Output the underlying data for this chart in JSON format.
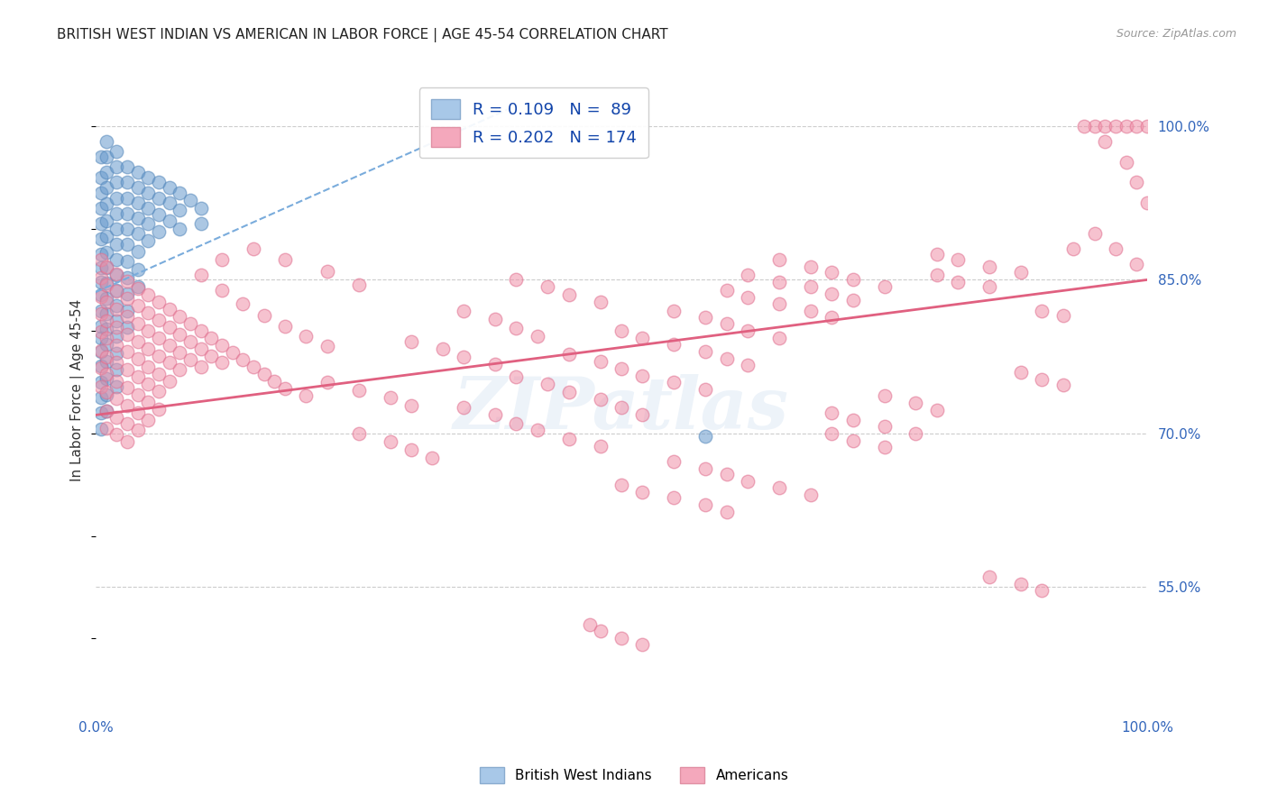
{
  "title": "BRITISH WEST INDIAN VS AMERICAN IN LABOR FORCE | AGE 45-54 CORRELATION CHART",
  "source": "Source: ZipAtlas.com",
  "ylabel": "In Labor Force | Age 45-54",
  "xlim": [
    0.0,
    1.0
  ],
  "ylim": [
    0.43,
    1.055
  ],
  "yticks_right": [
    0.55,
    0.7,
    0.85,
    1.0
  ],
  "ytick_labels_right": [
    "55.0%",
    "70.0%",
    "85.0%",
    "100.0%"
  ],
  "watermark": "ZIPatlas",
  "blue_scatter_color": "#6699cc",
  "blue_scatter_edge": "#5588bb",
  "pink_scatter_color": "#f090a8",
  "pink_scatter_edge": "#e07090",
  "blue_line_color": "#7aacdc",
  "pink_line_color": "#e06080",
  "blue_dots": [
    [
      0.005,
      0.97
    ],
    [
      0.005,
      0.95
    ],
    [
      0.005,
      0.935
    ],
    [
      0.005,
      0.92
    ],
    [
      0.005,
      0.905
    ],
    [
      0.005,
      0.89
    ],
    [
      0.005,
      0.875
    ],
    [
      0.005,
      0.862
    ],
    [
      0.005,
      0.848
    ],
    [
      0.005,
      0.835
    ],
    [
      0.005,
      0.82
    ],
    [
      0.005,
      0.805
    ],
    [
      0.005,
      0.793
    ],
    [
      0.005,
      0.78
    ],
    [
      0.005,
      0.766
    ],
    [
      0.005,
      0.75
    ],
    [
      0.01,
      0.985
    ],
    [
      0.01,
      0.97
    ],
    [
      0.01,
      0.955
    ],
    [
      0.01,
      0.94
    ],
    [
      0.01,
      0.924
    ],
    [
      0.01,
      0.908
    ],
    [
      0.01,
      0.893
    ],
    [
      0.01,
      0.877
    ],
    [
      0.01,
      0.862
    ],
    [
      0.01,
      0.847
    ],
    [
      0.01,
      0.832
    ],
    [
      0.01,
      0.817
    ],
    [
      0.01,
      0.802
    ],
    [
      0.01,
      0.787
    ],
    [
      0.01,
      0.77
    ],
    [
      0.02,
      0.975
    ],
    [
      0.02,
      0.96
    ],
    [
      0.02,
      0.945
    ],
    [
      0.02,
      0.93
    ],
    [
      0.02,
      0.915
    ],
    [
      0.02,
      0.9
    ],
    [
      0.02,
      0.885
    ],
    [
      0.02,
      0.87
    ],
    [
      0.02,
      0.855
    ],
    [
      0.02,
      0.84
    ],
    [
      0.02,
      0.825
    ],
    [
      0.02,
      0.81
    ],
    [
      0.03,
      0.96
    ],
    [
      0.03,
      0.945
    ],
    [
      0.03,
      0.93
    ],
    [
      0.03,
      0.915
    ],
    [
      0.03,
      0.9
    ],
    [
      0.03,
      0.885
    ],
    [
      0.03,
      0.868
    ],
    [
      0.03,
      0.852
    ],
    [
      0.03,
      0.836
    ],
    [
      0.04,
      0.955
    ],
    [
      0.04,
      0.94
    ],
    [
      0.04,
      0.925
    ],
    [
      0.04,
      0.91
    ],
    [
      0.04,
      0.895
    ],
    [
      0.04,
      0.878
    ],
    [
      0.05,
      0.95
    ],
    [
      0.05,
      0.935
    ],
    [
      0.05,
      0.92
    ],
    [
      0.05,
      0.905
    ],
    [
      0.06,
      0.945
    ],
    [
      0.06,
      0.93
    ],
    [
      0.06,
      0.914
    ],
    [
      0.07,
      0.94
    ],
    [
      0.07,
      0.925
    ],
    [
      0.07,
      0.908
    ],
    [
      0.08,
      0.935
    ],
    [
      0.08,
      0.918
    ],
    [
      0.09,
      0.928
    ],
    [
      0.1,
      0.92
    ],
    [
      0.005,
      0.735
    ],
    [
      0.005,
      0.72
    ],
    [
      0.005,
      0.704
    ],
    [
      0.01,
      0.754
    ],
    [
      0.01,
      0.738
    ],
    [
      0.01,
      0.722
    ],
    [
      0.02,
      0.795
    ],
    [
      0.02,
      0.778
    ],
    [
      0.02,
      0.762
    ],
    [
      0.02,
      0.746
    ],
    [
      0.03,
      0.82
    ],
    [
      0.03,
      0.804
    ],
    [
      0.04,
      0.86
    ],
    [
      0.04,
      0.843
    ],
    [
      0.05,
      0.888
    ],
    [
      0.06,
      0.897
    ],
    [
      0.08,
      0.9
    ],
    [
      0.1,
      0.905
    ],
    [
      0.58,
      0.697
    ]
  ],
  "pink_dots": [
    [
      0.005,
      0.87
    ],
    [
      0.005,
      0.852
    ],
    [
      0.005,
      0.834
    ],
    [
      0.005,
      0.817
    ],
    [
      0.005,
      0.799
    ],
    [
      0.005,
      0.781
    ],
    [
      0.005,
      0.764
    ],
    [
      0.005,
      0.746
    ],
    [
      0.01,
      0.863
    ],
    [
      0.01,
      0.845
    ],
    [
      0.01,
      0.828
    ],
    [
      0.01,
      0.81
    ],
    [
      0.01,
      0.793
    ],
    [
      0.01,
      0.775
    ],
    [
      0.01,
      0.758
    ],
    [
      0.01,
      0.74
    ],
    [
      0.01,
      0.722
    ],
    [
      0.01,
      0.705
    ],
    [
      0.02,
      0.856
    ],
    [
      0.02,
      0.839
    ],
    [
      0.02,
      0.821
    ],
    [
      0.02,
      0.804
    ],
    [
      0.02,
      0.786
    ],
    [
      0.02,
      0.769
    ],
    [
      0.02,
      0.751
    ],
    [
      0.02,
      0.734
    ],
    [
      0.02,
      0.716
    ],
    [
      0.02,
      0.699
    ],
    [
      0.03,
      0.849
    ],
    [
      0.03,
      0.832
    ],
    [
      0.03,
      0.814
    ],
    [
      0.03,
      0.797
    ],
    [
      0.03,
      0.78
    ],
    [
      0.03,
      0.762
    ],
    [
      0.03,
      0.745
    ],
    [
      0.03,
      0.727
    ],
    [
      0.03,
      0.71
    ],
    [
      0.03,
      0.692
    ],
    [
      0.04,
      0.842
    ],
    [
      0.04,
      0.825
    ],
    [
      0.04,
      0.807
    ],
    [
      0.04,
      0.79
    ],
    [
      0.04,
      0.773
    ],
    [
      0.04,
      0.755
    ],
    [
      0.04,
      0.738
    ],
    [
      0.04,
      0.72
    ],
    [
      0.04,
      0.703
    ],
    [
      0.05,
      0.835
    ],
    [
      0.05,
      0.818
    ],
    [
      0.05,
      0.8
    ],
    [
      0.05,
      0.783
    ],
    [
      0.05,
      0.765
    ],
    [
      0.05,
      0.748
    ],
    [
      0.05,
      0.731
    ],
    [
      0.05,
      0.713
    ],
    [
      0.06,
      0.828
    ],
    [
      0.06,
      0.811
    ],
    [
      0.06,
      0.793
    ],
    [
      0.06,
      0.776
    ],
    [
      0.06,
      0.758
    ],
    [
      0.06,
      0.741
    ],
    [
      0.06,
      0.724
    ],
    [
      0.07,
      0.821
    ],
    [
      0.07,
      0.804
    ],
    [
      0.07,
      0.786
    ],
    [
      0.07,
      0.769
    ],
    [
      0.07,
      0.751
    ],
    [
      0.08,
      0.814
    ],
    [
      0.08,
      0.797
    ],
    [
      0.08,
      0.779
    ],
    [
      0.08,
      0.762
    ],
    [
      0.09,
      0.807
    ],
    [
      0.09,
      0.79
    ],
    [
      0.09,
      0.772
    ],
    [
      0.1,
      0.8
    ],
    [
      0.1,
      0.783
    ],
    [
      0.1,
      0.765
    ],
    [
      0.11,
      0.793
    ],
    [
      0.11,
      0.776
    ],
    [
      0.12,
      0.786
    ],
    [
      0.12,
      0.769
    ],
    [
      0.13,
      0.779
    ],
    [
      0.14,
      0.772
    ],
    [
      0.15,
      0.765
    ],
    [
      0.16,
      0.758
    ],
    [
      0.17,
      0.751
    ],
    [
      0.18,
      0.744
    ],
    [
      0.2,
      0.737
    ],
    [
      0.1,
      0.855
    ],
    [
      0.12,
      0.84
    ],
    [
      0.14,
      0.827
    ],
    [
      0.16,
      0.815
    ],
    [
      0.18,
      0.805
    ],
    [
      0.2,
      0.795
    ],
    [
      0.22,
      0.785
    ],
    [
      0.12,
      0.87
    ],
    [
      0.15,
      0.88
    ],
    [
      0.18,
      0.87
    ],
    [
      0.22,
      0.858
    ],
    [
      0.25,
      0.845
    ],
    [
      0.22,
      0.75
    ],
    [
      0.25,
      0.742
    ],
    [
      0.28,
      0.735
    ],
    [
      0.3,
      0.727
    ],
    [
      0.3,
      0.79
    ],
    [
      0.33,
      0.783
    ],
    [
      0.35,
      0.775
    ],
    [
      0.38,
      0.768
    ],
    [
      0.35,
      0.82
    ],
    [
      0.38,
      0.812
    ],
    [
      0.4,
      0.803
    ],
    [
      0.42,
      0.795
    ],
    [
      0.4,
      0.85
    ],
    [
      0.43,
      0.843
    ],
    [
      0.45,
      0.835
    ],
    [
      0.48,
      0.828
    ],
    [
      0.25,
      0.7
    ],
    [
      0.28,
      0.692
    ],
    [
      0.3,
      0.684
    ],
    [
      0.32,
      0.676
    ],
    [
      0.35,
      0.725
    ],
    [
      0.38,
      0.718
    ],
    [
      0.4,
      0.71
    ],
    [
      0.42,
      0.703
    ],
    [
      0.45,
      0.695
    ],
    [
      0.48,
      0.688
    ],
    [
      0.4,
      0.755
    ],
    [
      0.43,
      0.748
    ],
    [
      0.45,
      0.74
    ],
    [
      0.48,
      0.733
    ],
    [
      0.5,
      0.725
    ],
    [
      0.52,
      0.718
    ],
    [
      0.45,
      0.777
    ],
    [
      0.48,
      0.77
    ],
    [
      0.5,
      0.763
    ],
    [
      0.52,
      0.756
    ],
    [
      0.55,
      0.75
    ],
    [
      0.58,
      0.743
    ],
    [
      0.5,
      0.8
    ],
    [
      0.52,
      0.793
    ],
    [
      0.55,
      0.787
    ],
    [
      0.58,
      0.78
    ],
    [
      0.6,
      0.773
    ],
    [
      0.62,
      0.767
    ],
    [
      0.55,
      0.82
    ],
    [
      0.58,
      0.813
    ],
    [
      0.6,
      0.807
    ],
    [
      0.62,
      0.8
    ],
    [
      0.65,
      0.793
    ],
    [
      0.5,
      0.65
    ],
    [
      0.52,
      0.643
    ],
    [
      0.55,
      0.637
    ],
    [
      0.58,
      0.63
    ],
    [
      0.6,
      0.623
    ],
    [
      0.55,
      0.673
    ],
    [
      0.58,
      0.666
    ],
    [
      0.6,
      0.66
    ],
    [
      0.62,
      0.653
    ],
    [
      0.65,
      0.647
    ],
    [
      0.68,
      0.64
    ],
    [
      0.6,
      0.84
    ],
    [
      0.62,
      0.833
    ],
    [
      0.65,
      0.827
    ],
    [
      0.68,
      0.82
    ],
    [
      0.7,
      0.813
    ],
    [
      0.62,
      0.855
    ],
    [
      0.65,
      0.848
    ],
    [
      0.68,
      0.843
    ],
    [
      0.7,
      0.836
    ],
    [
      0.72,
      0.83
    ],
    [
      0.65,
      0.87
    ],
    [
      0.68,
      0.863
    ],
    [
      0.7,
      0.857
    ],
    [
      0.72,
      0.85
    ],
    [
      0.75,
      0.843
    ],
    [
      0.7,
      0.7
    ],
    [
      0.72,
      0.693
    ],
    [
      0.75,
      0.687
    ],
    [
      0.7,
      0.72
    ],
    [
      0.72,
      0.713
    ],
    [
      0.75,
      0.707
    ],
    [
      0.78,
      0.7
    ],
    [
      0.75,
      0.737
    ],
    [
      0.78,
      0.73
    ],
    [
      0.8,
      0.723
    ],
    [
      0.8,
      0.855
    ],
    [
      0.82,
      0.848
    ],
    [
      0.85,
      0.843
    ],
    [
      0.8,
      0.875
    ],
    [
      0.82,
      0.87
    ],
    [
      0.85,
      0.863
    ],
    [
      0.88,
      0.857
    ],
    [
      0.85,
      0.56
    ],
    [
      0.88,
      0.553
    ],
    [
      0.9,
      0.547
    ],
    [
      0.88,
      0.76
    ],
    [
      0.9,
      0.753
    ],
    [
      0.92,
      0.747
    ],
    [
      0.9,
      0.82
    ],
    [
      0.92,
      0.815
    ],
    [
      0.93,
      0.88
    ],
    [
      0.95,
      1.0
    ],
    [
      0.96,
      1.0
    ],
    [
      0.97,
      1.0
    ],
    [
      0.98,
      1.0
    ],
    [
      0.99,
      1.0
    ],
    [
      1.0,
      1.0
    ],
    [
      0.94,
      1.0
    ],
    [
      0.96,
      0.985
    ],
    [
      0.98,
      0.965
    ],
    [
      0.99,
      0.945
    ],
    [
      1.0,
      0.925
    ],
    [
      0.95,
      0.895
    ],
    [
      0.97,
      0.88
    ],
    [
      0.99,
      0.865
    ],
    [
      0.47,
      0.513
    ],
    [
      0.48,
      0.507
    ],
    [
      0.5,
      0.5
    ],
    [
      0.52,
      0.494
    ]
  ],
  "blue_trend_x": [
    0.0,
    0.4
  ],
  "blue_trend_y": [
    0.838,
    1.02
  ],
  "pink_trend_x": [
    0.0,
    1.0
  ],
  "pink_trend_y": [
    0.718,
    0.85
  ]
}
